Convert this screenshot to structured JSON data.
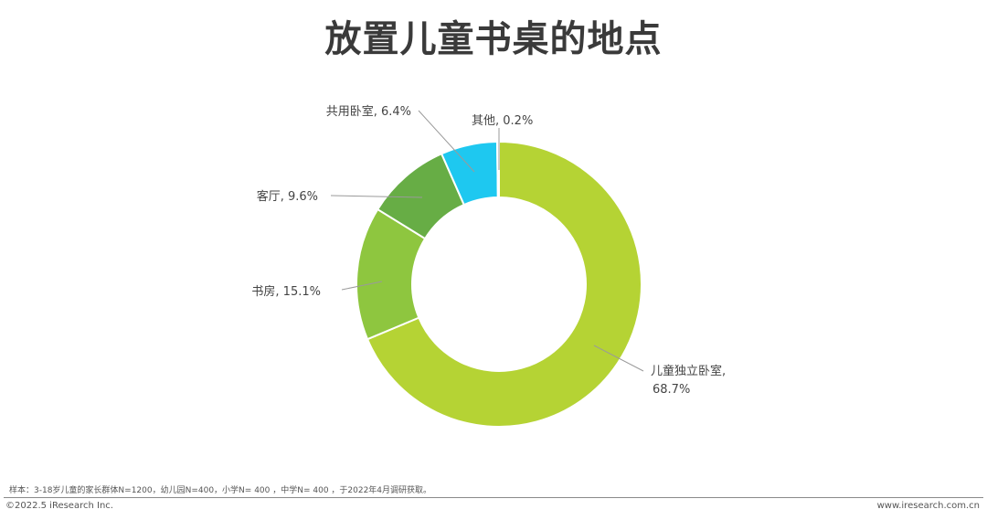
{
  "chart_data": {
    "type": "pie",
    "variant": "donut",
    "title": "放置儿童书桌的地点",
    "slices": [
      {
        "name": "儿童独立卧室",
        "label_lines": [
          "儿童独立卧室,",
          "68.7%"
        ],
        "value": 68.7,
        "color": "#b5d334"
      },
      {
        "name": "书房",
        "label_lines": [
          "书房, 15.1%"
        ],
        "value": 15.1,
        "color": "#8ec63f"
      },
      {
        "name": "客厅",
        "label_lines": [
          "客厅, 9.6%"
        ],
        "value": 9.6,
        "color": "#67ad45"
      },
      {
        "name": "共用卧室",
        "label_lines": [
          "共用卧室, 6.4%"
        ],
        "value": 6.4,
        "color": "#1ec8f0"
      },
      {
        "name": "其他",
        "label_lines": [
          "其他, 0.2%"
        ],
        "value": 0.2,
        "color": "#a8b2b8"
      }
    ],
    "legend": "none"
  },
  "footer": {
    "note": "样本：3-18岁儿童的家长群体N=1200，幼儿园N=400，小学N= 400 ，中学N= 400 ，于2022年4月调研获取。",
    "copyright": "©2022.5 iResearch Inc.",
    "website": "www.iresearch.com.cn"
  }
}
